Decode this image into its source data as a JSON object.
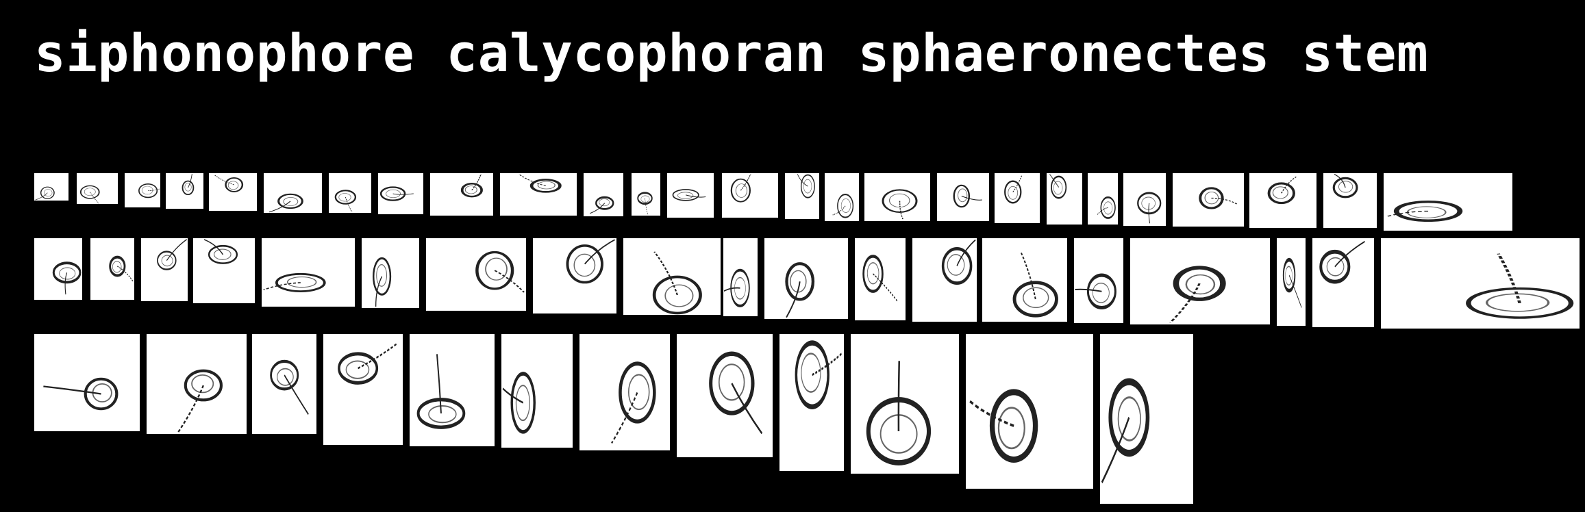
{
  "title": "siphonophore calycophoran sphaeronectes stem",
  "thumbnail_subject": "siphonophore specimen",
  "thumbnail_count": 60,
  "colors": {
    "background": "#000000",
    "title": "#ffffff",
    "thumbnail_bg": "#ffffff",
    "ink": "#222222"
  }
}
